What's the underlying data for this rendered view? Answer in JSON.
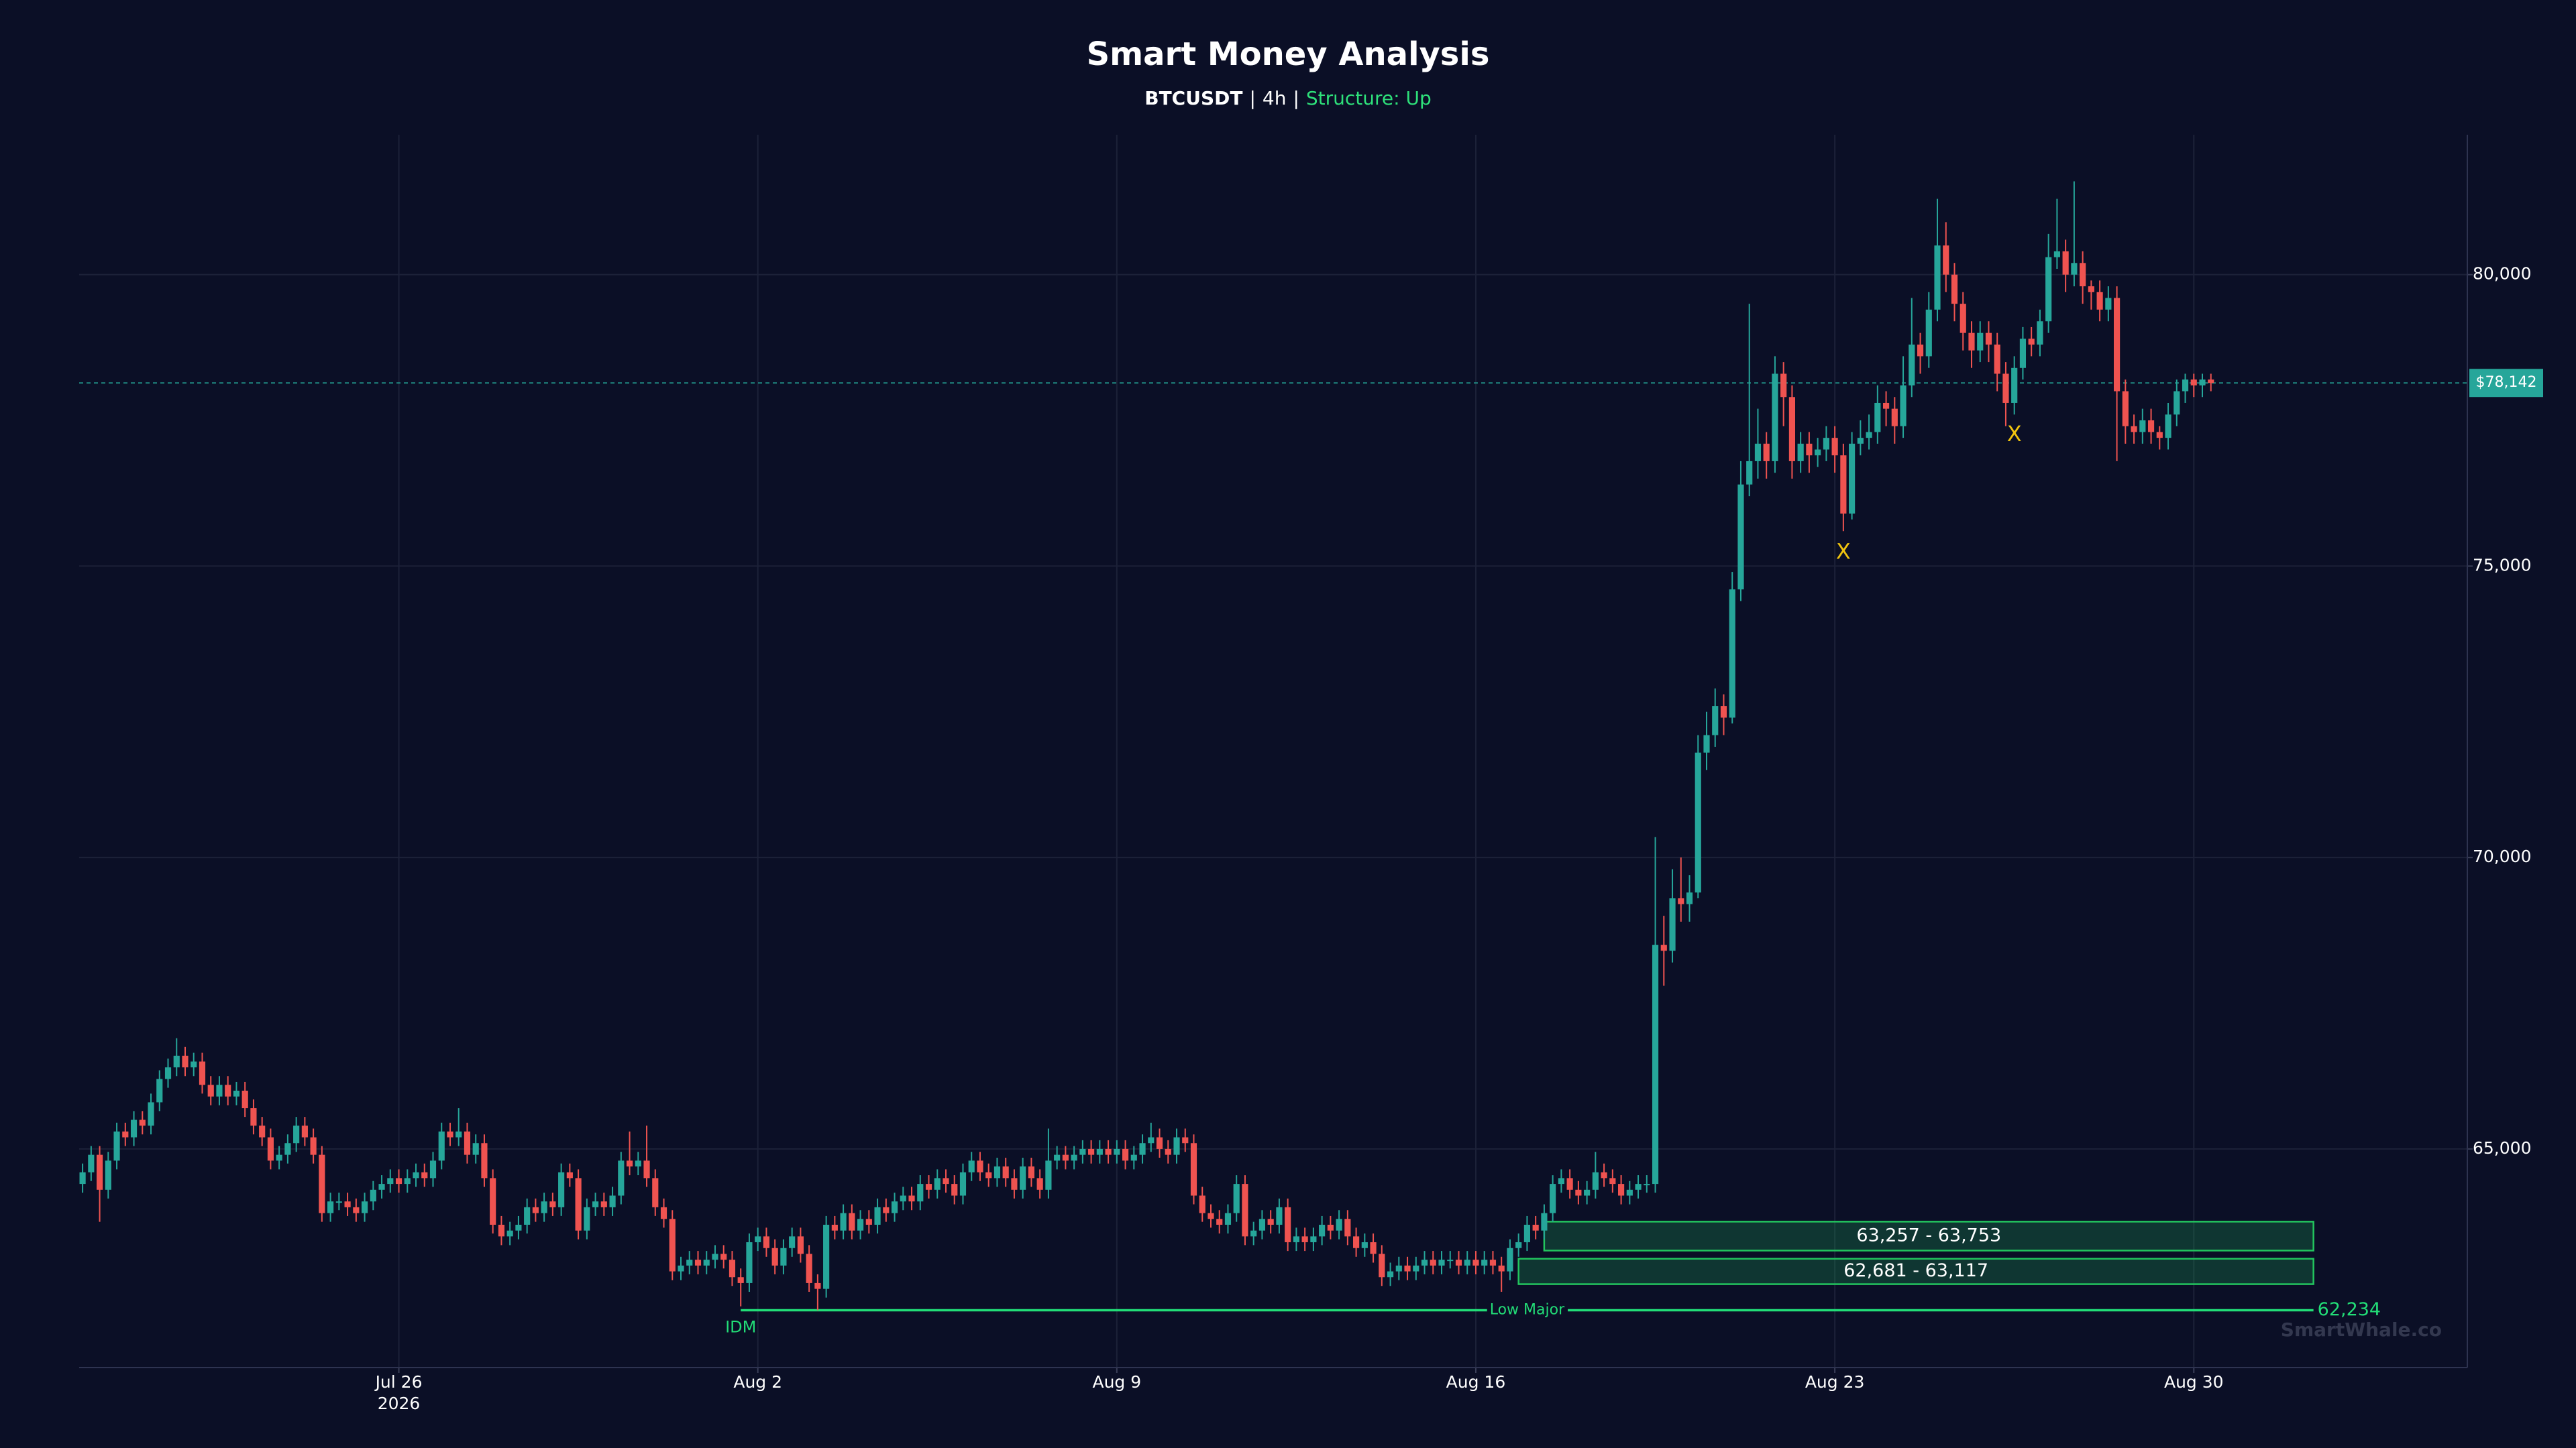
{
  "chart_data": {
    "type": "candlestick",
    "title": "Smart Money Analysis",
    "subtitle": {
      "symbol": "BTCUSDT",
      "separator": "|",
      "timeframe": "4h",
      "structure": "Structure: Up"
    },
    "up_color": "#26a69a",
    "down_color": "#ef5350",
    "open": [
      64400,
      64600,
      64900,
      64300,
      64800,
      65300,
      65200,
      65500,
      65400,
      65800,
      66200,
      66400,
      66600,
      66400,
      66500,
      66100,
      65900,
      66100,
      65900,
      66000,
      65700,
      65400,
      65200,
      64800,
      64900,
      65100,
      65400,
      65200,
      64900,
      63900,
      64100,
      64100,
      64000,
      63900,
      64100,
      64300,
      64400,
      64500,
      64400,
      64500,
      64600,
      64500,
      64800,
      65300,
      65200,
      65300,
      64900,
      65100,
      64500,
      63700,
      63500,
      63600,
      63700,
      64000,
      63900,
      64100,
      64000,
      64600,
      64500,
      63600,
      64000,
      64100,
      64000,
      64200,
      64800,
      64700,
      64800,
      64500,
      64000,
      63800,
      62900,
      63000,
      63100,
      63000,
      63100,
      63200,
      63100,
      62800,
      62700,
      63400,
      63500,
      63300,
      63000,
      63300,
      63500,
      63200,
      62700,
      62600,
      63700,
      63600,
      63900,
      63600,
      63800,
      63700,
      64000,
      63900,
      64100,
      64200,
      64100,
      64400,
      64300,
      64500,
      64400,
      64200,
      64600,
      64800,
      64600,
      64500,
      64700,
      64500,
      64300,
      64700,
      64500,
      64300,
      64800,
      64900,
      64800,
      64900,
      65000,
      64900,
      65000,
      64900,
      65000,
      64800,
      64900,
      65100,
      65200,
      65000,
      64900,
      65200,
      65100,
      64200,
      63900,
      63800,
      63700,
      63900,
      64400,
      63500,
      63600,
      63800,
      63700,
      64000,
      63400,
      63500,
      63400,
      63500,
      63700,
      63600,
      63800,
      63500,
      63300,
      63400,
      63200,
      62800,
      62900,
      63000,
      62900,
      63000,
      63100,
      63000,
      63100,
      63100,
      63000,
      63100,
      63000,
      63100,
      63000,
      62900,
      63300,
      63400,
      63700,
      63600,
      63900,
      64400,
      64500,
      64300,
      64200,
      64300,
      64600,
      64500,
      64400,
      64200,
      64300,
      64400,
      64400,
      68500,
      68400,
      69300,
      69200,
      69400,
      71800,
      72100,
      72600,
      72400,
      74600,
      76400,
      76800,
      77100,
      76800,
      78300,
      77900,
      76800,
      77100,
      76900,
      77000,
      77200,
      76900,
      75900,
      77100,
      77200,
      77300,
      77800,
      77700,
      77400,
      78100,
      78800,
      78600,
      79400,
      80500,
      80000,
      79500,
      79000,
      78700,
      79000,
      78800,
      78300,
      77800,
      78400,
      78900,
      78800,
      79200,
      80300,
      80400,
      80000,
      80200,
      79800,
      79700,
      79400,
      79600,
      78000,
      77400,
      77300,
      77500,
      77300,
      77200,
      77600,
      78000,
      78200,
      78100,
      78200
    ],
    "high": [
      64750,
      65050,
      65050,
      64950,
      65450,
      65450,
      65650,
      65650,
      65950,
      66350,
      66550,
      66900,
      66750,
      66650,
      66650,
      66250,
      66250,
      66250,
      66150,
      66150,
      65850,
      65550,
      65350,
      65050,
      65250,
      65550,
      65550,
      65350,
      65050,
      64250,
      64250,
      64250,
      64150,
      64250,
      64450,
      64550,
      64650,
      64650,
      64650,
      64750,
      64750,
      64950,
      65450,
      65450,
      65700,
      65450,
      65250,
      65250,
      64650,
      63850,
      63750,
      63850,
      64150,
      64150,
      64250,
      64250,
      64750,
      64750,
      64650,
      64150,
      64250,
      64250,
      64350,
      64950,
      65300,
      64950,
      65400,
      64650,
      64150,
      63950,
      63150,
      63250,
      63250,
      63250,
      63350,
      63350,
      63250,
      62950,
      63550,
      63650,
      63650,
      63450,
      63450,
      63650,
      63650,
      63350,
      62850,
      63850,
      63850,
      64050,
      64050,
      63950,
      63950,
      64150,
      64150,
      64250,
      64350,
      64350,
      64550,
      64550,
      64650,
      64650,
      64550,
      64750,
      64950,
      64950,
      64750,
      64850,
      64850,
      64650,
      64850,
      64850,
      64650,
      65350,
      65050,
      65050,
      65050,
      65150,
      65150,
      65150,
      65150,
      65150,
      65150,
      65050,
      65250,
      65450,
      65350,
      65150,
      65350,
      65350,
      65250,
      64350,
      64050,
      63950,
      64050,
      64550,
      64550,
      63750,
      63950,
      63950,
      64150,
      64150,
      63650,
      63650,
      63650,
      63850,
      63850,
      63950,
      63950,
      63650,
      63550,
      63550,
      63350,
      63050,
      63150,
      63150,
      63150,
      63250,
      63250,
      63250,
      63250,
      63250,
      63250,
      63250,
      63250,
      63250,
      63150,
      63450,
      63550,
      63850,
      63850,
      64050,
      64550,
      64650,
      64650,
      64450,
      64450,
      64950,
      64750,
      64650,
      64550,
      64450,
      64550,
      64550,
      70350,
      69000,
      69800,
      70000,
      69700,
      72100,
      72500,
      72900,
      72800,
      74900,
      76800,
      79500,
      77700,
      77300,
      78600,
      78500,
      78100,
      77300,
      77300,
      77200,
      77400,
      77400,
      77100,
      77300,
      77500,
      77600,
      78100,
      78000,
      77900,
      78600,
      79600,
      79000,
      79700,
      81300,
      80900,
      80200,
      79700,
      79200,
      79200,
      79200,
      79000,
      78500,
      78600,
      79100,
      79100,
      79400,
      80700,
      81300,
      80600,
      81600,
      80400,
      79900,
      79900,
      79800,
      79800,
      78200,
      77600,
      77700,
      77700,
      77400,
      77800,
      78200,
      78300,
      78300,
      78300,
      78300
    ],
    "low": [
      64250,
      64450,
      63750,
      64150,
      64650,
      65050,
      65050,
      65250,
      65250,
      65650,
      66050,
      66250,
      66250,
      66250,
      65950,
      65750,
      65750,
      65750,
      65750,
      65550,
      65250,
      65050,
      64650,
      64650,
      64750,
      64950,
      65050,
      64750,
      63750,
      63750,
      63950,
      63850,
      63750,
      63750,
      63950,
      64150,
      64250,
      64250,
      64250,
      64350,
      64350,
      64350,
      64650,
      65050,
      65050,
      64750,
      64750,
      64350,
      63550,
      63350,
      63350,
      63450,
      63550,
      63750,
      63750,
      63850,
      63850,
      64350,
      63450,
      63450,
      63850,
      63850,
      63850,
      64050,
      64550,
      64550,
      64350,
      63850,
      63650,
      62750,
      62750,
      62850,
      62850,
      62850,
      62950,
      62950,
      62650,
      62300,
      62550,
      63250,
      63150,
      62850,
      62850,
      63150,
      63050,
      62550,
      62234,
      62450,
      63450,
      63450,
      63450,
      63450,
      63550,
      63550,
      63750,
      63750,
      63950,
      63950,
      63950,
      64150,
      64150,
      64250,
      64050,
      64050,
      64450,
      64450,
      64350,
      64350,
      64350,
      64150,
      64150,
      64350,
      64150,
      64150,
      64650,
      64650,
      64650,
      64750,
      64750,
      64750,
      64750,
      64750,
      64650,
      64650,
      64750,
      64950,
      64850,
      64750,
      64750,
      64950,
      64050,
      63750,
      63650,
      63550,
      63550,
      63750,
      63350,
      63350,
      63450,
      63550,
      63550,
      63250,
      63250,
      63250,
      63250,
      63350,
      63450,
      63450,
      63350,
      63150,
      63150,
      63050,
      62650,
      62650,
      62750,
      62750,
      62750,
      62850,
      62850,
      62850,
      62950,
      62850,
      62850,
      62850,
      62850,
      62850,
      62550,
      62750,
      63150,
      63250,
      63450,
      63450,
      63750,
      64250,
      64150,
      64050,
      64050,
      64150,
      64350,
      64250,
      64050,
      64050,
      64150,
      64250,
      64250,
      67800,
      68200,
      68900,
      68900,
      69300,
      71500,
      71900,
      72100,
      72300,
      74400,
      76200,
      76500,
      76500,
      76600,
      77400,
      76500,
      76600,
      76600,
      76700,
      76800,
      76600,
      75600,
      75800,
      76900,
      77000,
      77100,
      77400,
      77100,
      77200,
      77900,
      78300,
      78400,
      79200,
      79700,
      79200,
      78700,
      78400,
      78500,
      78500,
      78000,
      77400,
      77600,
      78200,
      78600,
      78600,
      79000,
      80100,
      79700,
      79800,
      79500,
      79400,
      79200,
      79200,
      76800,
      77100,
      77100,
      77100,
      77100,
      77000,
      77000,
      77400,
      77800,
      77900,
      77900,
      78000
    ],
    "close": [
      64600,
      64900,
      64300,
      64800,
      65300,
      65200,
      65500,
      65400,
      65800,
      66200,
      66400,
      66600,
      66400,
      66500,
      66100,
      65900,
      66100,
      65900,
      66000,
      65700,
      65400,
      65200,
      64800,
      64900,
      65100,
      65400,
      65200,
      64900,
      63900,
      64100,
      64100,
      64000,
      63900,
      64100,
      64300,
      64400,
      64500,
      64400,
      64500,
      64600,
      64500,
      64800,
      65300,
      65200,
      65300,
      64900,
      65100,
      64500,
      63700,
      63500,
      63600,
      63700,
      64000,
      63900,
      64100,
      64000,
      64600,
      64500,
      63600,
      64000,
      64100,
      64000,
      64200,
      64800,
      64700,
      64800,
      64500,
      64000,
      63800,
      62900,
      63000,
      63100,
      63000,
      63100,
      63200,
      63100,
      62800,
      62700,
      63400,
      63500,
      63300,
      63000,
      63300,
      63500,
      63200,
      62700,
      62600,
      63700,
      63600,
      63900,
      63600,
      63800,
      63700,
      64000,
      63900,
      64100,
      64200,
      64100,
      64400,
      64300,
      64500,
      64400,
      64200,
      64600,
      64800,
      64600,
      64500,
      64700,
      64500,
      64300,
      64700,
      64500,
      64300,
      64800,
      64900,
      64800,
      64900,
      65000,
      64900,
      65000,
      64900,
      65000,
      64800,
      64900,
      65100,
      65200,
      65000,
      64900,
      65200,
      65100,
      64200,
      63900,
      63800,
      63700,
      63900,
      64400,
      63500,
      63600,
      63800,
      63700,
      64000,
      63400,
      63500,
      63400,
      63500,
      63700,
      63600,
      63800,
      63500,
      63300,
      63400,
      63200,
      62800,
      62900,
      63000,
      62900,
      63000,
      63100,
      63000,
      63100,
      63100,
      63000,
      63100,
      63000,
      63100,
      63000,
      62900,
      63300,
      63400,
      63700,
      63600,
      63900,
      64400,
      64500,
      64300,
      64200,
      64300,
      64600,
      64500,
      64400,
      64200,
      64300,
      64400,
      64400,
      68500,
      68400,
      69300,
      69200,
      69400,
      71800,
      72100,
      72600,
      72400,
      74600,
      76400,
      76800,
      77100,
      76800,
      78300,
      77900,
      76800,
      77100,
      76900,
      77000,
      77200,
      76900,
      75900,
      77100,
      77200,
      77300,
      77800,
      77700,
      77400,
      78100,
      78800,
      78600,
      79400,
      80500,
      80000,
      79500,
      79000,
      78700,
      79000,
      78800,
      78300,
      77800,
      78400,
      78900,
      78800,
      79200,
      80300,
      80400,
      80000,
      80200,
      79800,
      79700,
      79400,
      79600,
      78000,
      77400,
      77300,
      77500,
      77300,
      77200,
      77600,
      78000,
      78200,
      78100,
      78200,
      78142
    ],
    "xlim": [
      -0.4,
      279
    ],
    "xticks": [
      {
        "value": 37,
        "label": "Jul 26\n2026"
      },
      {
        "value": 79,
        "label": "Aug 2"
      },
      {
        "value": 121,
        "label": "Aug 9"
      },
      {
        "value": 163,
        "label": "Aug 16"
      },
      {
        "value": 205,
        "label": "Aug 23"
      },
      {
        "value": 247,
        "label": "Aug 30"
      }
    ],
    "ylim": [
      61250,
      82400
    ],
    "yticks": [
      {
        "value": 65000,
        "label": "65,000"
      },
      {
        "value": 70000,
        "label": "70,000"
      },
      {
        "value": 75000,
        "label": "75,000"
      },
      {
        "value": 80000,
        "label": "80,000"
      }
    ],
    "grid": true,
    "current_price": {
      "value": 78142,
      "label": "$78,142",
      "color": "#26a69a"
    },
    "zones": [
      {
        "low": 63257,
        "high": 63753,
        "label": "63,257 - 63,753",
        "start": 171,
        "end": 261
      },
      {
        "low": 62681,
        "high": 63117,
        "label": "62,681 - 63,117",
        "start": 168,
        "end": 261
      }
    ],
    "zone_color": "#22c55e",
    "low_major": {
      "value": 62234,
      "label": "Low Major",
      "value_label": "62,234",
      "start": 77,
      "end": 261,
      "color": "#22dd77"
    },
    "idm": {
      "label": "IDM",
      "x": 77
    },
    "markers": [
      {
        "x": 206,
        "y": 75230,
        "label": "X"
      },
      {
        "x": 226,
        "y": 77250,
        "label": "X"
      }
    ],
    "marker_color": "#f1c40f",
    "watermark": "SmartWhale.co"
  }
}
